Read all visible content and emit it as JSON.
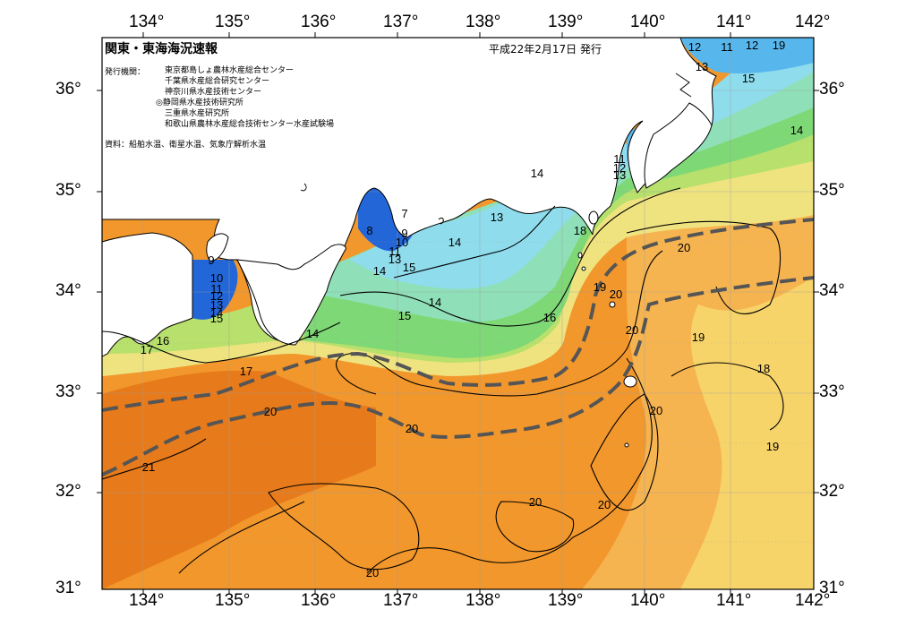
{
  "title": "関東・東海海況速報",
  "date": "平成22年2月17日 発行",
  "issuer_label": "発行機関：",
  "issuers": [
    "東京都島しょ農林水産総合センター",
    "千葉県水産総合研究センター",
    "神奈川県水産技術センター",
    "◎静岡県水産技術研究所",
    "三重県水産研究所",
    "和歌山県農林水産総合技術センター水産試験場"
  ],
  "source": "資料：船舶水温、衛星水温、気象庁解析水温",
  "lon_labels": [
    "134°",
    "135°",
    "136°",
    "137°",
    "138°",
    "139°",
    "140°",
    "141°",
    "142°"
  ],
  "lat_labels": [
    "36°",
    "35°",
    "34°",
    "33°",
    "32°",
    "31°"
  ],
  "contour_labels": [
    "12",
    "11",
    "12",
    "19",
    "13",
    "15",
    "14",
    "14",
    "11",
    "12",
    "13",
    "13",
    "14",
    "18",
    "20",
    "8",
    "7",
    "9",
    "10",
    "11",
    "13",
    "14",
    "15",
    "14",
    "19",
    "20",
    "9",
    "10",
    "11",
    "12",
    "13",
    "14",
    "15",
    "14",
    "15",
    "16",
    "16",
    "17",
    "17",
    "20",
    "20",
    "20",
    "19",
    "18",
    "21",
    "20",
    "20",
    "20",
    "19",
    "20"
  ],
  "colors": {
    "warm_deep": "#e77a1a",
    "warm": "#f2972c",
    "warm_light": "#f6b450",
    "yellow": "#f7d46a",
    "pale_yellow": "#efe380",
    "lime": "#b8e06c",
    "green": "#7fd876",
    "mint": "#8fe0b8",
    "cyan": "#8fdcec",
    "sky": "#57b6ec",
    "blue": "#2266d8",
    "land": "#ffffff",
    "kuroshio_axis": "#555555"
  }
}
